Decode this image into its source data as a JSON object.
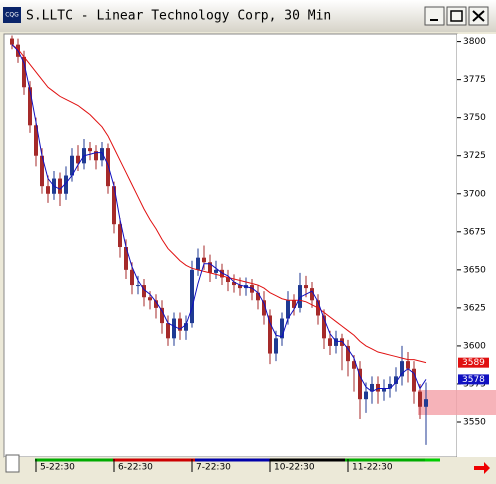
{
  "window": {
    "icon": "CQG"
  },
  "chart_data": {
    "type": "candlestick",
    "title": "S.LLTC - Linear Technology Corp, 30 Min",
    "categories": [
      null,
      null,
      null,
      null,
      "5-22:30",
      null,
      null,
      null,
      null,
      null,
      null,
      null,
      null,
      null,
      null,
      null,
      null,
      "6-22:30",
      null,
      null,
      null,
      null,
      null,
      null,
      null,
      null,
      null,
      null,
      null,
      null,
      "7-22:30",
      null,
      null,
      null,
      null,
      null,
      null,
      null,
      null,
      null,
      null,
      null,
      null,
      "10-22:30",
      null,
      null,
      null,
      null,
      null,
      null,
      null,
      null,
      null,
      null,
      null,
      null,
      "11-22:30",
      null,
      null,
      null,
      null,
      null,
      null,
      null,
      null,
      null,
      null,
      null,
      null,
      null
    ],
    "open": [
      3802,
      3798,
      3790,
      3770,
      3745,
      3725,
      3705,
      3700,
      3710,
      3700,
      3712,
      3725,
      3720,
      3730,
      3728,
      3722,
      3730,
      3705,
      3680,
      3665,
      3650,
      3640,
      3640,
      3632,
      3630,
      3625,
      3615,
      3605,
      3618,
      3610,
      3615,
      3650,
      3658,
      3655,
      3648,
      3650,
      3645,
      3642,
      3640,
      3638,
      3640,
      3635,
      3630,
      3620,
      3595,
      3605,
      3618,
      3630,
      3625,
      3640,
      3638,
      3630,
      3620,
      3605,
      3600,
      3605,
      3600,
      3590,
      3585,
      3565,
      3570,
      3575,
      3570,
      3572,
      3575,
      3580,
      3590,
      3585,
      3570,
      3560
    ],
    "high": [
      3804,
      3802,
      3794,
      3774,
      3750,
      3730,
      3712,
      3715,
      3714,
      3718,
      3730,
      3732,
      3736,
      3734,
      3732,
      3734,
      3733,
      3708,
      3684,
      3670,
      3655,
      3646,
      3644,
      3636,
      3634,
      3630,
      3620,
      3622,
      3622,
      3620,
      3656,
      3664,
      3666,
      3660,
      3656,
      3654,
      3650,
      3647,
      3645,
      3645,
      3644,
      3640,
      3636,
      3624,
      3610,
      3622,
      3636,
      3634,
      3648,
      3646,
      3642,
      3634,
      3624,
      3610,
      3610,
      3608,
      3604,
      3594,
      3590,
      3576,
      3580,
      3580,
      3578,
      3580,
      3586,
      3600,
      3596,
      3590,
      3575,
      3576
    ],
    "low": [
      3795,
      3786,
      3765,
      3740,
      3718,
      3700,
      3694,
      3696,
      3692,
      3696,
      3708,
      3715,
      3716,
      3722,
      3716,
      3718,
      3700,
      3674,
      3658,
      3644,
      3634,
      3634,
      3626,
      3624,
      3618,
      3608,
      3600,
      3600,
      3604,
      3604,
      3612,
      3646,
      3650,
      3642,
      3644,
      3640,
      3636,
      3635,
      3633,
      3633,
      3630,
      3624,
      3614,
      3588,
      3590,
      3600,
      3614,
      3620,
      3622,
      3632,
      3625,
      3614,
      3598,
      3594,
      3595,
      3584,
      3580,
      3570,
      3552,
      3556,
      3562,
      3562,
      3564,
      3566,
      3570,
      3574,
      3576,
      3562,
      3552,
      3535
    ],
    "close": [
      3798,
      3790,
      3770,
      3745,
      3725,
      3705,
      3700,
      3710,
      3700,
      3712,
      3725,
      3720,
      3730,
      3728,
      3722,
      3730,
      3705,
      3680,
      3665,
      3650,
      3640,
      3640,
      3632,
      3630,
      3625,
      3615,
      3605,
      3618,
      3610,
      3615,
      3650,
      3658,
      3655,
      3648,
      3650,
      3645,
      3642,
      3640,
      3638,
      3640,
      3635,
      3630,
      3620,
      3595,
      3605,
      3618,
      3630,
      3625,
      3640,
      3638,
      3630,
      3620,
      3605,
      3600,
      3605,
      3600,
      3590,
      3585,
      3565,
      3570,
      3575,
      3570,
      3572,
      3575,
      3580,
      3590,
      3585,
      3570,
      3560,
      3565
    ],
    "up_color": "#1f3a93",
    "down_color": "#a52a2a",
    "series": [
      {
        "color": "#e01010",
        "values": [
          3798,
          3795,
          3790,
          3785,
          3780,
          3775,
          3770,
          3767,
          3764,
          3762,
          3760,
          3758,
          3755,
          3752,
          3748,
          3744,
          3738,
          3730,
          3722,
          3714,
          3706,
          3698,
          3690,
          3683,
          3677,
          3670,
          3664,
          3660,
          3656,
          3653,
          3651,
          3650,
          3649,
          3648,
          3647,
          3646,
          3645,
          3644,
          3643,
          3642,
          3641,
          3640,
          3638,
          3635,
          3633,
          3631,
          3630,
          3630,
          3630,
          3629,
          3627,
          3625,
          3622,
          3619,
          3616,
          3613,
          3610,
          3607,
          3603,
          3600,
          3598,
          3596,
          3595,
          3594,
          3593,
          3592,
          3591,
          3591,
          3590,
          3589
        ]
      },
      {
        "color": "#1010c0",
        "values": [
          3798,
          3794,
          3786,
          3768,
          3747,
          3725,
          3710,
          3705,
          3703,
          3707,
          3712,
          3719,
          3725,
          3726,
          3727,
          3727,
          3719,
          3705,
          3683,
          3665,
          3652,
          3643,
          3637,
          3634,
          3629,
          3623,
          3615,
          3613,
          3611,
          3614,
          3625,
          3641,
          3654,
          3654,
          3651,
          3648,
          3646,
          3642,
          3640,
          3639,
          3638,
          3635,
          3628,
          3615,
          3607,
          3606,
          3618,
          3624,
          3632,
          3634,
          3636,
          3629,
          3618,
          3608,
          3603,
          3603,
          3598,
          3592,
          3580,
          3573,
          3570,
          3572,
          3572,
          3572,
          3576,
          3582,
          3585,
          3582,
          3572,
          3578
        ]
      }
    ],
    "markers": [
      {
        "value": 3589,
        "color": "#e01010"
      },
      {
        "value": 3578,
        "color": "#1010c0"
      }
    ],
    "ylim": [
      3527,
      3805
    ],
    "yticks": [
      3550,
      3575,
      3600,
      3625,
      3650,
      3675,
      3700,
      3725,
      3750,
      3775,
      3800
    ],
    "grid": false
  }
}
